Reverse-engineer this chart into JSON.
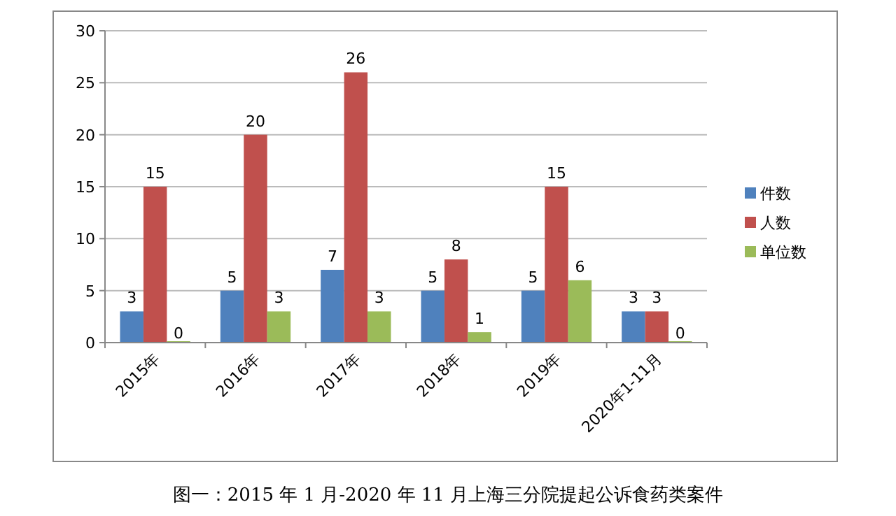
{
  "chart_data": {
    "type": "bar",
    "categories": [
      "2015年",
      "2016年",
      "2017年",
      "2018年",
      "2019年",
      "2020年1-11月"
    ],
    "series": [
      {
        "name": "件数",
        "color": "#4f81bd",
        "values": [
          3,
          5,
          7,
          5,
          5,
          3
        ]
      },
      {
        "name": "人数",
        "color": "#c0504d",
        "values": [
          15,
          20,
          26,
          8,
          15,
          3
        ]
      },
      {
        "name": "单位数",
        "color": "#9bbb59",
        "values": [
          0,
          3,
          3,
          1,
          6,
          0
        ]
      }
    ],
    "ylim": [
      0,
      30
    ],
    "yticks": [
      0,
      5,
      10,
      15,
      20,
      25,
      30
    ],
    "grid": "y",
    "legend": "right",
    "data_labels": true,
    "annotations": [
      "图一：2015 年 1 月-2020 年 11 月上海三分院提起公诉食药类案件"
    ]
  }
}
